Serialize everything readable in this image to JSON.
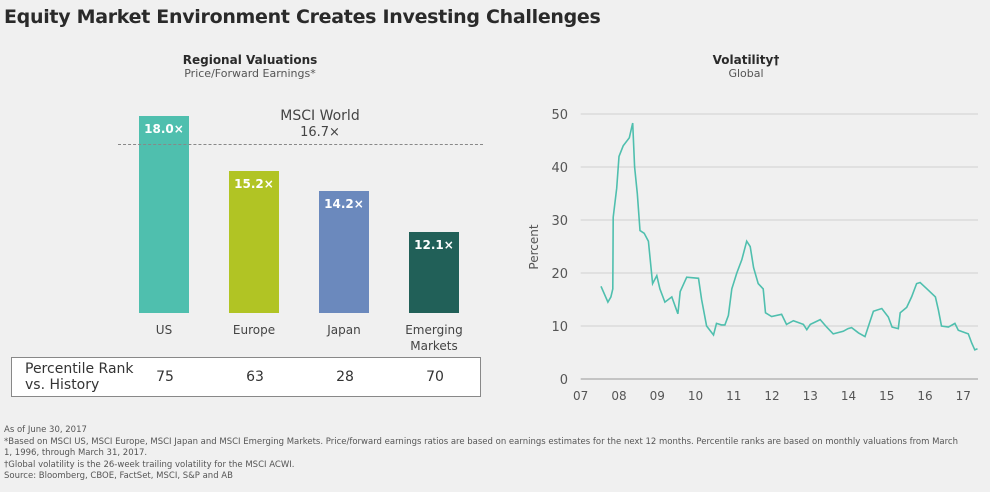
{
  "title": "Equity Market Environment Creates Investing Challenges",
  "chart_data": [
    {
      "type": "bar",
      "title": "Regional Valuations",
      "subtitle": "Price/Forward Earnings*",
      "categories": [
        "US",
        "Europe",
        "Japan",
        "Emerging Markets"
      ],
      "values": [
        18.0,
        15.2,
        14.2,
        12.1
      ],
      "value_labels": [
        "18.0×",
        "15.2×",
        "14.2×",
        "12.1×"
      ],
      "colors": [
        "#4fbfae",
        "#b1c424",
        "#6b89bd",
        "#216058"
      ],
      "ylim": [
        8,
        18
      ],
      "reference_line": {
        "label": "MSCI World",
        "value_label": "16.7×",
        "value": 16.7
      },
      "table": {
        "label_line1": "Percentile Rank",
        "label_line2": "vs. History",
        "values": [
          "75",
          "63",
          "28",
          "70"
        ]
      }
    },
    {
      "type": "line",
      "title": "Volatility†",
      "subtitle": "Global",
      "ylabel": "Percent",
      "ylim": [
        0,
        50
      ],
      "yticks": [
        0,
        10,
        20,
        30,
        40,
        50
      ],
      "xlim": [
        2007,
        2017.4
      ],
      "xticks": [
        2007,
        2008,
        2009,
        2010,
        2011,
        2012,
        2013,
        2014,
        2015,
        2016,
        2017
      ],
      "xtick_labels": [
        "07",
        "08",
        "09",
        "10",
        "11",
        "12",
        "13",
        "14",
        "15",
        "16",
        "17"
      ],
      "grid": true,
      "color": "#4fbfae",
      "x": [
        2007.53,
        2007.71,
        2007.79,
        2007.84,
        2007.85,
        2007.94,
        2008.0,
        2008.11,
        2008.27,
        2008.36,
        2008.41,
        2008.48,
        2008.55,
        2008.66,
        2008.77,
        2008.88,
        2008.99,
        2009.07,
        2009.2,
        2009.38,
        2009.54,
        2009.6,
        2009.77,
        2010.08,
        2010.16,
        2010.29,
        2010.47,
        2010.55,
        2010.68,
        2010.77,
        2010.86,
        2010.95,
        2011.08,
        2011.21,
        2011.34,
        2011.43,
        2011.52,
        2011.64,
        2011.77,
        2011.83,
        2011.99,
        2012.25,
        2012.38,
        2012.56,
        2012.82,
        2012.91,
        2013.0,
        2013.26,
        2013.43,
        2013.6,
        2013.86,
        2013.99,
        2014.08,
        2014.26,
        2014.43,
        2014.56,
        2014.65,
        2014.87,
        2015.04,
        2015.14,
        2015.3,
        2015.35,
        2015.52,
        2015.65,
        2015.78,
        2015.87,
        2016.05,
        2016.27,
        2016.35,
        2016.43,
        2016.61,
        2016.78,
        2016.87,
        2017.13,
        2017.22,
        2017.3,
        2017.37
      ],
      "y": [
        17.5,
        14.5,
        15.5,
        17,
        30.5,
        36,
        42,
        44,
        45.5,
        48.3,
        40,
        35,
        28,
        27.5,
        26,
        18,
        19.5,
        17,
        14.5,
        15.5,
        12.3,
        16.5,
        19.2,
        19,
        15,
        10,
        8.3,
        10.5,
        10.2,
        10.2,
        12,
        17,
        20,
        22.5,
        26,
        25,
        21,
        18,
        17,
        12.5,
        11.8,
        12.2,
        10.3,
        11,
        10.3,
        9.3,
        10.3,
        11.2,
        9.8,
        8.5,
        9,
        9.5,
        9.7,
        8.7,
        8,
        10.8,
        12.8,
        13.3,
        11.7,
        9.8,
        9.5,
        12.5,
        13.5,
        15.5,
        18,
        18.2,
        17,
        15.5,
        13,
        10,
        9.8,
        10.5,
        9.2,
        8.5,
        6.8,
        5.5,
        5.7
      ]
    }
  ],
  "notes": [
    "As of June 30, 2017",
    "*Based on MSCI US, MSCI Europe, MSCI Japan and MSCI Emerging Markets. Price/forward earnings ratios are based on earnings estimates for the next 12 months. Percentile ranks are based on monthly valuations from March 1, 1996, through March 31, 2017.",
    "†Global volatility is the 26-week trailing volatility for the MSCI ACWI.",
    "Source: Bloomberg, CBOE, FactSet, MSCI, S&P and AB"
  ]
}
